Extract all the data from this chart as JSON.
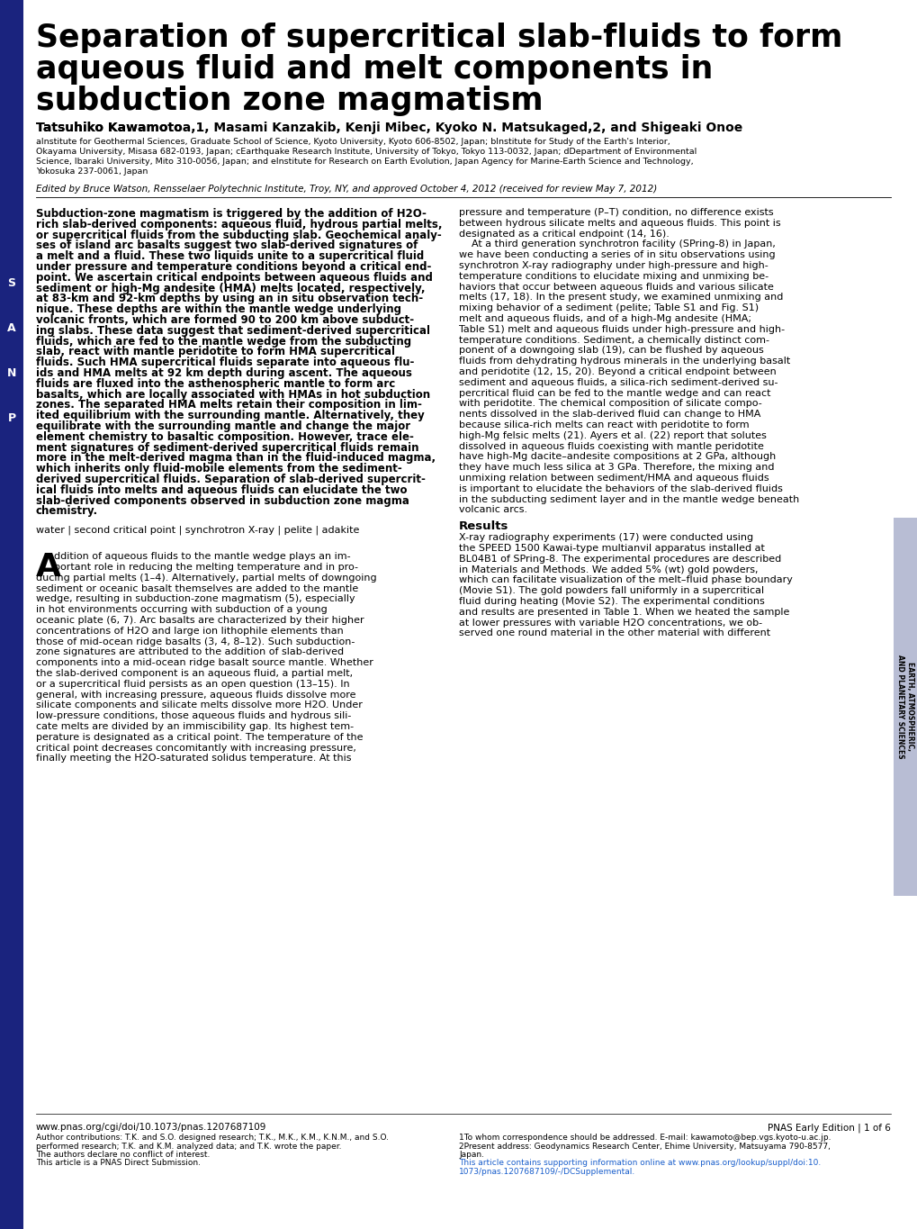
{
  "title_line1": "Separation of supercritical slab-fluids to form",
  "title_line2": "aqueous fluid and melt components in",
  "title_line3": "subduction zone magmatism",
  "authors_plain": "Tatsuhiko Kawamotoa,1, Masami Kanzakib, Kenji Mibec, Kyoko N. Matsukaged,2, and Shigeaki Onoe",
  "affiliations_line1": "aInstitute for Geothermal Sciences, Graduate School of Science, Kyoto University, Kyoto 606-8502, Japan; bInstitute for Study of the Earth's Interior,",
  "affiliations_line2": "Okayama University, Misasa 682-0193, Japan; cEarthquake Research Institute, University of Tokyo, Tokyo 113-0032, Japan; dDepartment of Environmental",
  "affiliations_line3": "Science, Ibaraki University, Mito 310-0056, Japan; and eInstitute for Research on Earth Evolution, Japan Agency for Marine-Earth Science and Technology,",
  "affiliations_line4": "Yokosuka 237-0061, Japan",
  "edited_by": "Edited by Bruce Watson, Rensselaer Polytechnic Institute, Troy, NY, and approved October 4, 2012 (received for review May 7, 2012)",
  "abstract_lines": [
    "Subduction-zone magmatism is triggered by the addition of H2O-",
    "rich slab-derived components: aqueous fluid, hydrous partial melts,",
    "or supercritical fluids from the subducting slab. Geochemical analy-",
    "ses of island arc basalts suggest two slab-derived signatures of",
    "a melt and a fluid. These two liquids unite to a supercritical fluid",
    "under pressure and temperature conditions beyond a critical end-",
    "point. We ascertain critical endpoints between aqueous fluids and",
    "sediment or high-Mg andesite (HMA) melts located, respectively,",
    "at 83-km and 92-km depths by using an in situ observation tech-",
    "nique. These depths are within the mantle wedge underlying",
    "volcanic fronts, which are formed 90 to 200 km above subduct-",
    "ing slabs. These data suggest that sediment-derived supercritical",
    "fluids, which are fed to the mantle wedge from the subducting",
    "slab, react with mantle peridotite to form HMA supercritical",
    "fluids. Such HMA supercritical fluids separate into aqueous flu-",
    "ids and HMA melts at 92 km depth during ascent. The aqueous",
    "fluids are fluxed into the asthenospheric mantle to form arc",
    "basalts, which are locally associated with HMAs in hot subduction",
    "zones. The separated HMA melts retain their composition in lim-",
    "ited equilibrium with the surrounding mantle. Alternatively, they",
    "equilibrate with the surrounding mantle and change the major",
    "element chemistry to basaltic composition. However, trace ele-",
    "ment signatures of sediment-derived supercritical fluids remain",
    "more in the melt-derived magma than in the fluid-induced magma,",
    "which inherits only fluid-mobile elements from the sediment-",
    "derived supercritical fluids. Separation of slab-derived supercrit-",
    "ical fluids into melts and aqueous fluids can elucidate the two",
    "slab-derived components observed in subduction zone magma",
    "chemistry."
  ],
  "keywords": "water | second critical point | synchrotron X-ray | pelite | adakite",
  "left_col_lines": [
    "ddition of aqueous fluids to the mantle wedge plays an im-",
    "portant role in reducing the melting temperature and in pro-",
    "ducing partial melts (1–4). Alternatively, partial melts of downgoing",
    "sediment or oceanic basalt themselves are added to the mantle",
    "wedge, resulting in subduction-zone magmatism (5), especially",
    "in hot environments occurring with subduction of a young",
    "oceanic plate (6, 7). Arc basalts are characterized by their higher",
    "concentrations of H2O and large ion lithophile elements than",
    "those of mid-ocean ridge basalts (3, 4, 8–12). Such subduction-",
    "zone signatures are attributed to the addition of slab-derived",
    "components into a mid-ocean ridge basalt source mantle. Whether",
    "the slab-derived component is an aqueous fluid, a partial melt,",
    "or a supercritical fluid persists as an open question (13–15). In",
    "general, with increasing pressure, aqueous fluids dissolve more",
    "silicate components and silicate melts dissolve more H2O. Under",
    "low-pressure conditions, those aqueous fluids and hydrous sili-",
    "cate melts are divided by an immiscibility gap. Its highest tem-",
    "perature is designated as a critical point. The temperature of the",
    "critical point decreases concomitantly with increasing pressure,",
    "finally meeting the H2O-saturated solidus temperature. At this"
  ],
  "right_col_intro_lines": [
    "pressure and temperature (P–T) condition, no difference exists",
    "between hydrous silicate melts and aqueous fluids. This point is",
    "designated as a critical endpoint (14, 16).",
    "    At a third generation synchrotron facility (SPring-8) in Japan,",
    "we have been conducting a series of in situ observations using",
    "synchrotron X-ray radiography under high-pressure and high-",
    "temperature conditions to elucidate mixing and unmixing be-",
    "haviors that occur between aqueous fluids and various silicate",
    "melts (17, 18). In the present study, we examined unmixing and",
    "mixing behavior of a sediment (pelite; Table S1 and Fig. S1)",
    "melt and aqueous fluids, and of a high-Mg andesite (HMA;",
    "Table S1) melt and aqueous fluids under high-pressure and high-",
    "temperature conditions. Sediment, a chemically distinct com-",
    "ponent of a downgoing slab (19), can be flushed by aqueous",
    "fluids from dehydrating hydrous minerals in the underlying basalt",
    "and peridotite (12, 15, 20). Beyond a critical endpoint between",
    "sediment and aqueous fluids, a silica-rich sediment-derived su-",
    "percritical fluid can be fed to the mantle wedge and can react",
    "with peridotite. The chemical composition of silicate compo-",
    "nents dissolved in the slab-derived fluid can change to HMA",
    "because silica-rich melts can react with peridotite to form",
    "high-Mg felsic melts (21). Ayers et al. (22) report that solutes",
    "dissolved in aqueous fluids coexisting with mantle peridotite",
    "have high-Mg dacite–andesite compositions at 2 GPa, although",
    "they have much less silica at 3 GPa. Therefore, the mixing and",
    "unmixing relation between sediment/HMA and aqueous fluids",
    "is important to elucidate the behaviors of the slab-derived fluids",
    "in the subducting sediment layer and in the mantle wedge beneath",
    "volcanic arcs."
  ],
  "results_header": "Results",
  "results_lines": [
    "X-ray radiography experiments (17) were conducted using",
    "the SPEED 1500 Kawai-type multianvil apparatus installed at",
    "BL04B1 of SPring-8. The experimental procedures are described",
    "in Materials and Methods. We added 5% (wt) gold powders,",
    "which can facilitate visualization of the melt–fluid phase boundary",
    "(Movie S1). The gold powders fall uniformly in a supercritical",
    "fluid during heating (Movie S2). The experimental conditions",
    "and results are presented in Table 1. When we heated the sample",
    "at lower pressures with variable H2O concentrations, we ob-",
    "served one round material in the other material with different"
  ],
  "footer_left": "www.pnas.org/cgi/doi/10.1073/pnas.1207687109",
  "footer_right": "PNAS Early Edition | 1 of 6",
  "author_contrib": "Author contributions: T.K. and S.O. designed research; T.K., M.K., K.M., K.N.M., and S.O.",
  "author_contrib2": "performed research; T.K. and K.M. analyzed data; and T.K. wrote the paper.",
  "conflict": "The authors declare no conflict of interest.",
  "pnas_direct": "This article is a PNAS Direct Submission.",
  "footnote1": "1To whom correspondence should be addressed. E-mail: kawamoto@bep.vgs.kyoto-u.ac.jp.",
  "footnote2": "2Present address: Geodynamics Research Center, Ehime University, Matsuyama 790-8577,",
  "footnote2b": "Japan.",
  "supplemental1": "This article contains supporting information online at www.pnas.org/lookup/suppl/doi:10.",
  "supplemental2": "1073/pnas.1207687109/-/DCSupplemental.",
  "sidebar_text": "EARTH, ATMOSPHERIC,\nAND PLANETARY SCIENCES",
  "bg_color": "#ffffff",
  "left_bar_color": "#1a237e"
}
